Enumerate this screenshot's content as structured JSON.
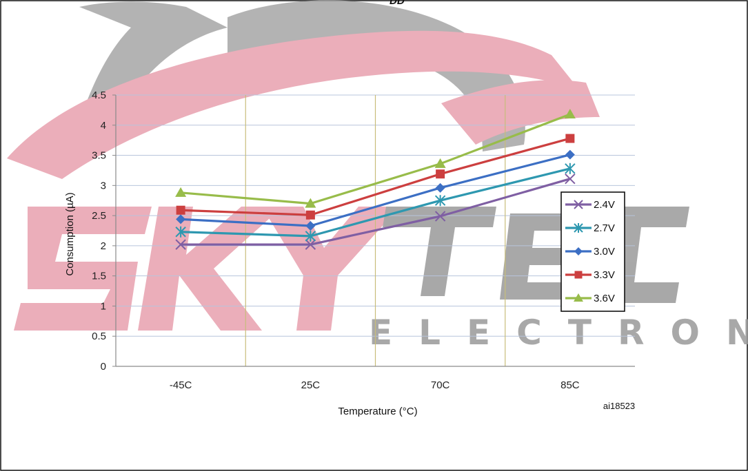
{
  "top_fragment": "DD",
  "watermark": {
    "brand": "SKYTECH",
    "subtitle": "ELECTRONIC",
    "colors": {
      "pink": "#e8a0ae",
      "gray": "#9a9a9a"
    }
  },
  "figure_id": "ai18523",
  "chart_data": {
    "type": "line",
    "categories": [
      "-45C",
      "25C",
      "70C",
      "85C"
    ],
    "xlabel": "Temperature (°C)",
    "ylabel": "Consumption (µA)",
    "ylim": [
      0,
      4.5
    ],
    "yticks": [
      "0",
      "0.5",
      "1",
      "1.5",
      "2",
      "2.5",
      "3",
      "3.5",
      "4",
      "4.5"
    ],
    "grid": true,
    "legend_position": "right",
    "series": [
      {
        "name": "2.4V",
        "color": "#7f5fa3",
        "marker": "x",
        "values": [
          2.02,
          2.02,
          2.49,
          3.11
        ]
      },
      {
        "name": "2.7V",
        "color": "#2e98b0",
        "marker": "star",
        "values": [
          2.23,
          2.16,
          2.75,
          3.28
        ]
      },
      {
        "name": "3.0V",
        "color": "#3c6fc4",
        "marker": "diamond",
        "values": [
          2.44,
          2.33,
          2.96,
          3.51
        ]
      },
      {
        "name": "3.3V",
        "color": "#cc3f3f",
        "marker": "square",
        "values": [
          2.59,
          2.51,
          3.19,
          3.78
        ]
      },
      {
        "name": "3.6V",
        "color": "#98bc4a",
        "marker": "triangle",
        "values": [
          2.88,
          2.7,
          3.36,
          4.18
        ]
      }
    ]
  }
}
